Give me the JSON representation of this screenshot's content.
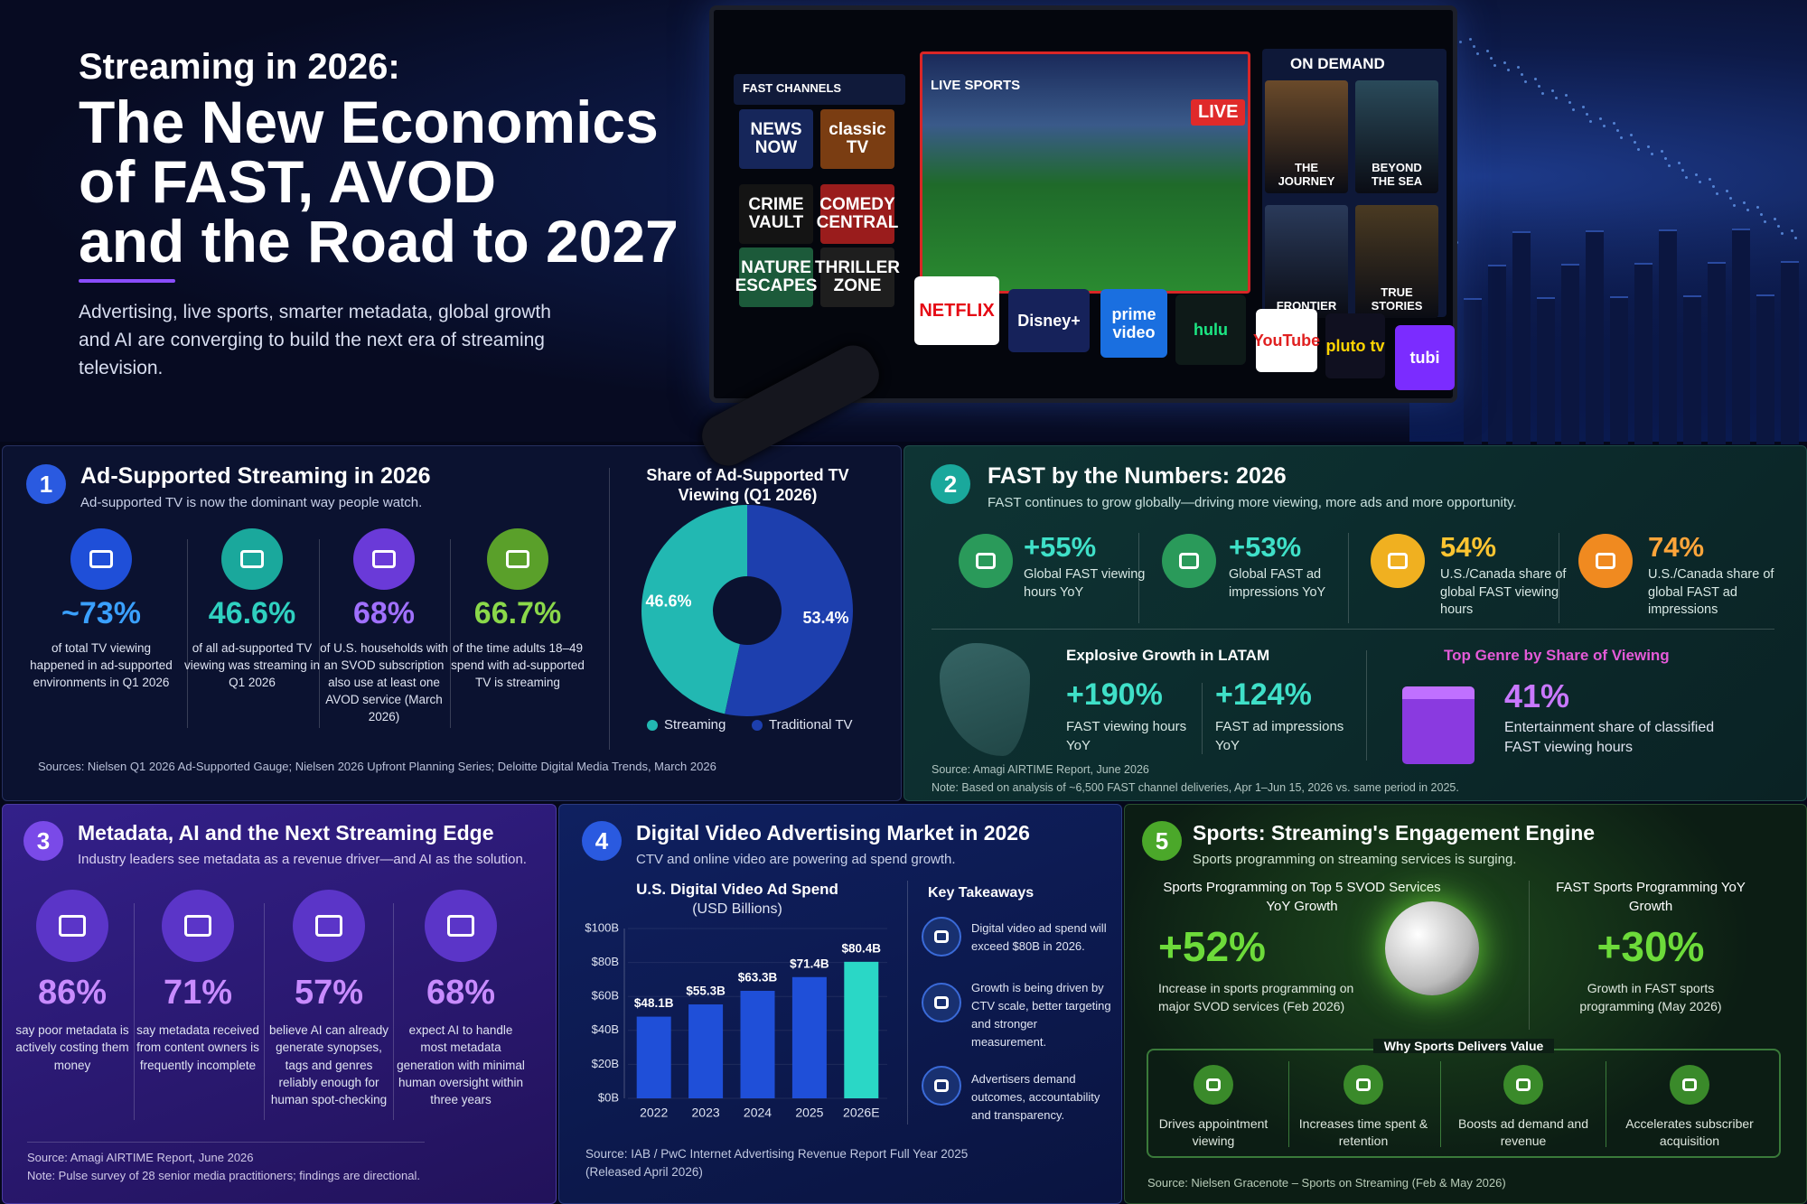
{
  "hero": {
    "kicker": "Streaming in 2026:",
    "title_lines": [
      "The New Economics",
      "of FAST, AVOD",
      "and the Road to 2027"
    ],
    "subtitle": "Advertising, live sports, smarter metadata, global growth and AI are converging to build the next era of streaming television.",
    "tv": {
      "fast_label": "FAST CHANNELS",
      "channels": [
        "NEWS NOW",
        "classic TV",
        "CRIME VAULT",
        "COMEDY CENTRAL",
        "NATURE ESCAPES",
        "THRILLER ZONE"
      ],
      "live_label": "LIVE SPORTS",
      "live_badge": "LIVE",
      "on_demand_label": "ON DEMAND",
      "titles": [
        "THE JOURNEY",
        "BEYOND THE SEA",
        "FRONTIER",
        "TRUE STORIES"
      ],
      "logos": [
        "NETFLIX",
        "Disney+",
        "prime video",
        "hulu",
        "YouTube",
        "pluto tv",
        "tubi"
      ]
    }
  },
  "section1": {
    "number": "1",
    "title": "Ad-Supported Streaming in 2026",
    "subtitle": "Ad-supported TV is now the dominant way people watch.",
    "stats": [
      {
        "value": "~73%",
        "text": "of total TV viewing happened in ad-supported environments in Q1 2026"
      },
      {
        "value": "46.6%",
        "text": "of all ad-supported TV viewing was streaming in Q1 2026"
      },
      {
        "value": "68%",
        "text": "of U.S. households with an SVOD subscription also use at least one AVOD service (March 2026)"
      },
      {
        "value": "66.7%",
        "text": "of the time adults 18–49 spend with ad-supported TV is streaming"
      }
    ],
    "source": "Sources: Nielsen Q1 2026 Ad-Supported Gauge; Nielsen 2026 Upfront Planning Series; Deloitte Digital Media Trends, March 2026"
  },
  "section2": {
    "number": "2",
    "title": "FAST by the Numbers: 2026",
    "subtitle": "FAST continues to grow globally—driving more viewing, more ads and more opportunity.",
    "stats": [
      {
        "value": "+55%",
        "text": "Global FAST viewing hours YoY"
      },
      {
        "value": "+53%",
        "text": "Global FAST ad impressions YoY"
      },
      {
        "value": "54%",
        "text": "U.S./Canada share of global FAST viewing hours"
      },
      {
        "value": "74%",
        "text": "U.S./Canada share of global FAST ad impressions"
      }
    ],
    "latam": {
      "heading": "Explosive Growth in LATAM",
      "stats": [
        {
          "value": "+190%",
          "text": "FAST viewing hours YoY"
        },
        {
          "value": "+124%",
          "text": "FAST ad impressions YoY"
        }
      ]
    },
    "genre": {
      "heading": "Top Genre by Share of Viewing",
      "value": "41%",
      "text": "Entertainment share of classified FAST viewing hours"
    },
    "source": "Source: Amagi AIRTIME Report, June 2026",
    "note": "Note: Based on analysis of ~6,500 FAST channel deliveries, Apr 1–Jun 15, 2026 vs. same period in 2025."
  },
  "section3": {
    "number": "3",
    "title": "Metadata, AI and the Next Streaming Edge",
    "subtitle": "Industry leaders see metadata as a revenue driver—and AI as the solution.",
    "stats": [
      {
        "value": "86%",
        "text": "say poor metadata is actively costing them money"
      },
      {
        "value": "71%",
        "text": "say metadata received from content owners is frequently incomplete"
      },
      {
        "value": "57%",
        "text": "believe AI can already generate synopses, tags and genres reliably enough for human spot-checking"
      },
      {
        "value": "68%",
        "text": "expect AI to handle most metadata generation with minimal human oversight within three years"
      }
    ],
    "source": "Source: Amagi AIRTIME Report, June 2026",
    "note": "Note: Pulse survey of 28 senior media practitioners; findings are directional."
  },
  "section4": {
    "number": "4",
    "title": "Digital Video Advertising Market in 2026",
    "subtitle": "CTV and online video are powering ad spend growth.",
    "takeaways_title": "Key Takeaways",
    "takeaways": [
      "Digital video ad spend will exceed $80B in 2026.",
      "Growth is being driven by CTV scale, better targeting and stronger measurement.",
      "Advertisers demand outcomes, accountability and transparency."
    ],
    "source_lines": [
      "Source: IAB / PwC Internet Advertising Revenue Report Full Year 2025",
      "(Released April 2026)"
    ]
  },
  "section5": {
    "number": "5",
    "title": "Sports: Streaming's Engagement Engine",
    "subtitle": "Sports programming on streaming services is surging.",
    "left": {
      "heading": "Sports Programming on Top 5 SVOD Services YoY Growth",
      "value": "+52%",
      "text": "Increase in sports programming on major SVOD services (Feb 2026)"
    },
    "right": {
      "heading": "FAST Sports Programming YoY Growth",
      "value": "+30%",
      "text": "Growth in FAST sports programming (May 2026)"
    },
    "value_title": "Why Sports Delivers Value",
    "values": [
      "Drives appointment viewing",
      "Increases time spent & retention",
      "Boosts ad demand and revenue",
      "Accelerates subscriber acquisition"
    ],
    "source": "Source: Nielsen Gracenote – Sports on Streaming (Feb & May 2026)"
  },
  "chart_data": [
    {
      "type": "donut",
      "title": "Share of Ad-Supported TV Viewing (Q1 2026)",
      "categories": [
        "Streaming",
        "Traditional TV"
      ],
      "values": [
        46.6,
        53.4
      ],
      "value_labels": [
        "46.6%",
        "53.4%"
      ],
      "colors": [
        "#22b8b2",
        "#1d3fae"
      ]
    },
    {
      "type": "bar",
      "title": "U.S. Digital Video Ad Spend",
      "subtitle": "(USD Billions)",
      "categories": [
        "2022",
        "2023",
        "2024",
        "2025",
        "2026E"
      ],
      "values": [
        48.1,
        55.3,
        63.3,
        71.4,
        80.4
      ],
      "value_labels": [
        "$48.1B",
        "$55.3B",
        "$63.3B",
        "$71.4B",
        "$80.4B"
      ],
      "colors": [
        "#1f4fd8",
        "#1f4fd8",
        "#1f4fd8",
        "#1f4fd8",
        "#2ad7c6"
      ],
      "ylim": [
        0,
        100
      ],
      "yticks": [
        {
          "value": 0,
          "label": "$0B"
        },
        {
          "value": 20,
          "label": "$20B"
        },
        {
          "value": 40,
          "label": "$40B"
        },
        {
          "value": 60,
          "label": "$60B"
        },
        {
          "value": 80,
          "label": "$80B"
        },
        {
          "value": 100,
          "label": "$100B"
        }
      ],
      "grid": true
    }
  ]
}
